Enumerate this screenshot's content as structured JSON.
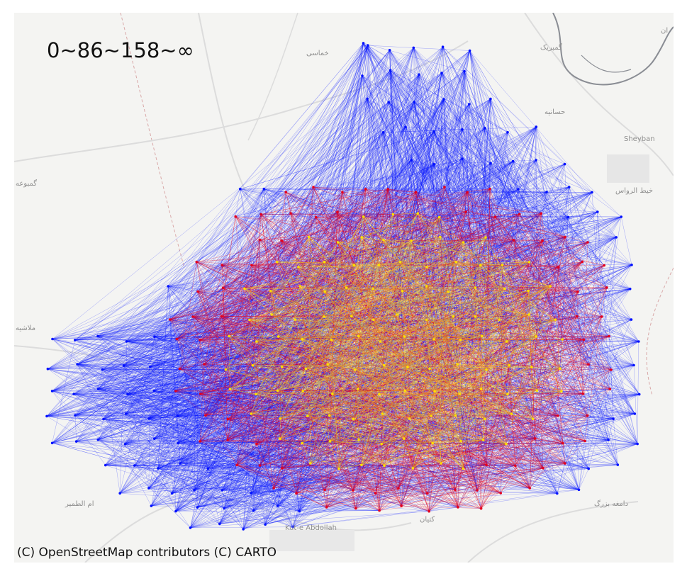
{
  "legend": {
    "thresholds_text": "0~86~158~∞"
  },
  "attribution": "(C) OpenStreetMap contributors (C) CARTO",
  "place_labels": {
    "top_center": "خماسی",
    "top_right": "گمبریک",
    "right_mid": "حسانیه",
    "sheyban": "Sheyban",
    "khit": "خیط الرواس",
    "left_upper": "گمبوعه",
    "left_mid": "ملاشیه",
    "bottom_left": "ام الطمیر",
    "bottom_right": "دامغه بزرگ",
    "kut": "Kut-e Abdollah",
    "bottom_mid": "کتیان",
    "top_edge": "ان"
  },
  "colors": {
    "background": "#f4f4f2",
    "road": "#dcdcdc",
    "river": "#8a8d94",
    "boundary": "#d9a9a9",
    "band_low": "#ffe000",
    "band_mid": "#e3001e",
    "band_high": "#0010ff"
  },
  "map_data": {
    "type": "od-flow-network",
    "bands": [
      {
        "range": "0~86",
        "color": "yellow"
      },
      {
        "range": "86~158",
        "color": "red"
      },
      {
        "range": "158~∞",
        "color": "blue"
      }
    ]
  }
}
